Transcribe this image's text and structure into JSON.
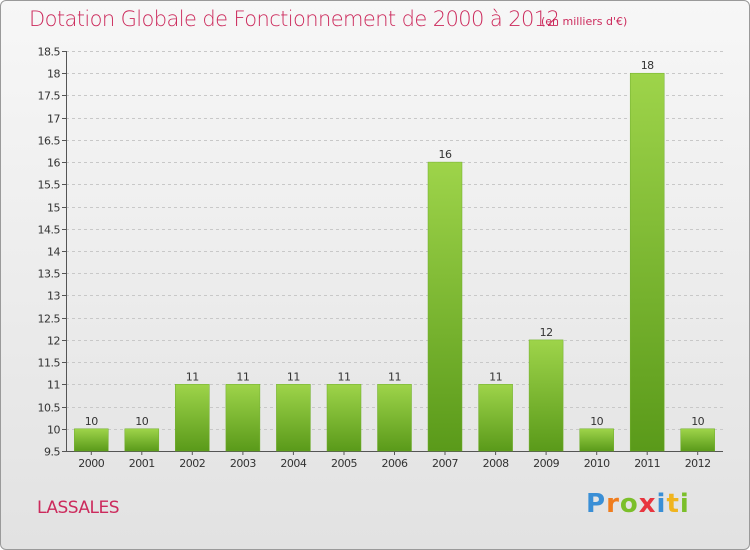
{
  "header": {
    "title": "Dotation Globale de Fonctionnement de 2000 à 2012",
    "subtitle": "(en milliers d'€)"
  },
  "footer": {
    "commune": "LASSALES",
    "logo_text": "Proxiti"
  },
  "colors": {
    "bar_light": "#9ed44a",
    "bar_dark": "#5a9a1a",
    "title": "#cc2a5c"
  },
  "chart_data": {
    "type": "bar",
    "title": "Dotation Globale de Fonctionnement de 2000 à 2012",
    "subtitle": "(en milliers d'€)",
    "xlabel": "",
    "ylabel": "",
    "categories": [
      "2000",
      "2001",
      "2002",
      "2003",
      "2004",
      "2005",
      "2006",
      "2007",
      "2008",
      "2009",
      "2010",
      "2011",
      "2012"
    ],
    "values": [
      10,
      10,
      11,
      11,
      11,
      11,
      11,
      16,
      11,
      12,
      10,
      18,
      10
    ],
    "data_labels": [
      "10",
      "10",
      "11",
      "11",
      "11",
      "11",
      "11",
      "16",
      "11",
      "12",
      "10",
      "18",
      "10"
    ],
    "ylim": [
      9.5,
      18.5
    ],
    "yticks": [
      9.5,
      10,
      10.5,
      11,
      11.5,
      12,
      12.5,
      13,
      13.5,
      14,
      14.5,
      15,
      15.5,
      16,
      16.5,
      17,
      17.5,
      18,
      18.5
    ],
    "ytick_labels": [
      "9.5",
      "10",
      "10.5",
      "11",
      "11.5",
      "12",
      "12.5",
      "13",
      "13.5",
      "14",
      "14.5",
      "15",
      "15.5",
      "16",
      "16.5",
      "17",
      "17.5",
      "18",
      "18.5"
    ],
    "grid": true,
    "legend": "none"
  }
}
